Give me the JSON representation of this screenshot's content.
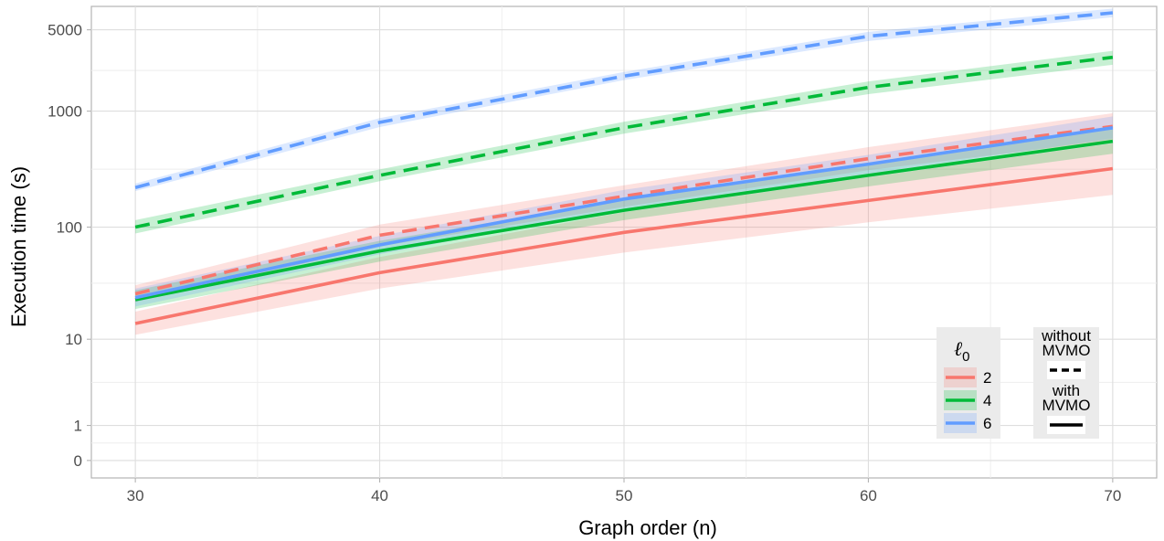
{
  "chart_data": {
    "type": "line",
    "xlabel": "Graph order (n)",
    "ylabel": "Execution time (s)",
    "x": [
      30,
      40,
      50,
      60,
      70
    ],
    "xlim": [
      28.2,
      71.8
    ],
    "xticks": [
      30,
      40,
      50,
      60,
      70
    ],
    "yscale": "log10(y+1)",
    "ylim": [
      -0.15,
      3.9
    ],
    "yticks": [
      0,
      1,
      10,
      100,
      1000,
      5000
    ],
    "grid": true,
    "legend_color": {
      "title_main": "ℓ",
      "title_sub": "0",
      "items": [
        {
          "label": "2",
          "color": "#F8766D"
        },
        {
          "label": "4",
          "color": "#00BA38"
        },
        {
          "label": "6",
          "color": "#619CFF"
        }
      ]
    },
    "legend_linetype": {
      "items": [
        {
          "line1": "without",
          "line2": "MVMO",
          "dash": true
        },
        {
          "line1": "with",
          "line2": "MVMO",
          "dash": false
        }
      ]
    },
    "series": [
      {
        "name": "2",
        "color": "#F8766D",
        "mvmo": "without",
        "values": [
          26,
          85,
          185,
          390,
          740
        ],
        "lower": [
          22,
          68,
          150,
          310,
          560
        ],
        "upper": [
          31,
          105,
          230,
          490,
          960
        ]
      },
      {
        "name": "4",
        "color": "#00BA38",
        "mvmo": "without",
        "values": [
          100,
          280,
          720,
          1600,
          2900
        ],
        "lower": [
          88,
          250,
          640,
          1400,
          2500
        ],
        "upper": [
          115,
          315,
          810,
          1800,
          3300
        ]
      },
      {
        "name": "6",
        "color": "#619CFF",
        "mvmo": "without",
        "values": [
          220,
          800,
          2000,
          4400,
          7000
        ],
        "lower": [
          205,
          730,
          1850,
          4000,
          6400
        ],
        "upper": [
          238,
          870,
          2170,
          4800,
          7600
        ]
      },
      {
        "name": "2",
        "color": "#F8766D",
        "mvmo": "with",
        "values": [
          14,
          40,
          90,
          170,
          320
        ],
        "lower": [
          11,
          29,
          60,
          110,
          190
        ],
        "upper": [
          18,
          55,
          135,
          270,
          530
        ]
      },
      {
        "name": "4",
        "color": "#00BA38",
        "mvmo": "with",
        "values": [
          23,
          62,
          140,
          280,
          550
        ],
        "lower": [
          19,
          50,
          115,
          225,
          430
        ],
        "upper": [
          28,
          76,
          170,
          345,
          700
        ]
      },
      {
        "name": "6",
        "color": "#619CFF",
        "mvmo": "with",
        "values": [
          24,
          70,
          175,
          350,
          720
        ],
        "lower": [
          20,
          58,
          145,
          290,
          580
        ],
        "upper": [
          29,
          84,
          210,
          420,
          900
        ]
      }
    ]
  }
}
